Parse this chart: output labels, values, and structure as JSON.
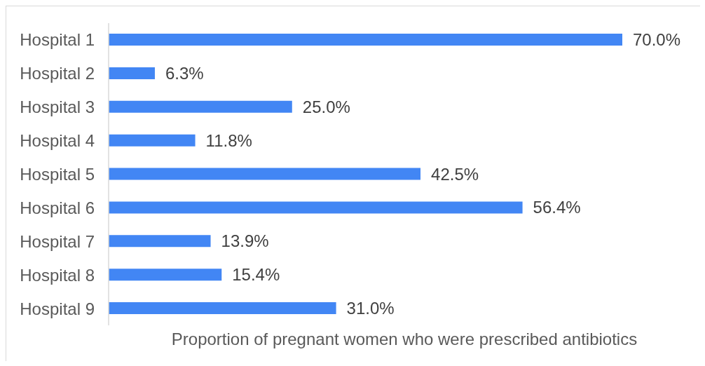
{
  "chart_data": {
    "type": "bar",
    "orientation": "horizontal",
    "xlabel": "Proportion of pregnant women who were prescribed antibiotics",
    "categories": [
      "Hospital 1",
      "Hospital 2",
      "Hospital 3",
      "Hospital 4",
      "Hospital 5",
      "Hospital 6",
      "Hospital 7",
      "Hospital 8",
      "Hospital 9"
    ],
    "values": [
      70.0,
      6.3,
      25.0,
      11.8,
      42.5,
      56.4,
      13.9,
      15.4,
      31.0
    ],
    "value_labels": [
      "70.0%",
      "6.3%",
      "25.0%",
      "11.8%",
      "42.5%",
      "56.4%",
      "13.9%",
      "15.4%",
      "31.0%"
    ],
    "color": "#4286f4"
  }
}
